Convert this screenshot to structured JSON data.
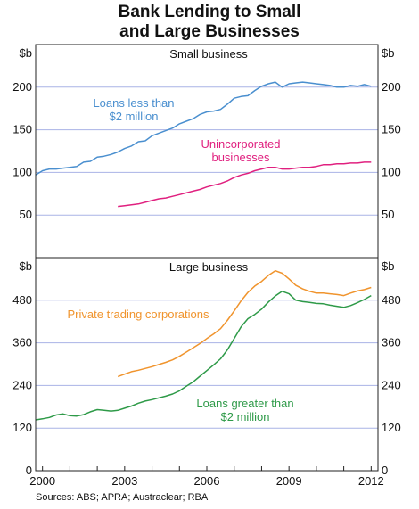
{
  "title_line1": "Bank Lending to Small",
  "title_line2": "and Large Businesses",
  "source": "Sources: ABS; APRA; Austraclear; RBA",
  "colors": {
    "blue": "#4a8fcf",
    "magenta": "#e0207f",
    "orange": "#f0942d",
    "green": "#2e9a48",
    "grid": "#a9b3e6",
    "axis": "#222222"
  },
  "chart_data": [
    {
      "type": "line",
      "title": "Small business",
      "unit": "$b",
      "ylim": [
        0,
        250
      ],
      "yticks": [
        50,
        100,
        150,
        200
      ],
      "xlim": [
        1999.75,
        2012.25
      ],
      "series": [
        {
          "name": "Loans less than $2 million",
          "label_lines": [
            "Loans less than",
            "$2 million"
          ],
          "color": "#4a8fcf",
          "points": [
            [
              1999.75,
              97
            ],
            [
              2000.0,
              102
            ],
            [
              2000.25,
              104
            ],
            [
              2000.5,
              104
            ],
            [
              2000.75,
              105
            ],
            [
              2001.0,
              106
            ],
            [
              2001.25,
              107
            ],
            [
              2001.5,
              112
            ],
            [
              2001.75,
              113
            ],
            [
              2002.0,
              118
            ],
            [
              2002.25,
              119
            ],
            [
              2002.5,
              121
            ],
            [
              2002.75,
              124
            ],
            [
              2003.0,
              128
            ],
            [
              2003.25,
              131
            ],
            [
              2003.5,
              136
            ],
            [
              2003.75,
              137
            ],
            [
              2004.0,
              143
            ],
            [
              2004.25,
              146
            ],
            [
              2004.5,
              149
            ],
            [
              2004.75,
              152
            ],
            [
              2005.0,
              157
            ],
            [
              2005.25,
              160
            ],
            [
              2005.5,
              163
            ],
            [
              2005.75,
              168
            ],
            [
              2006.0,
              171
            ],
            [
              2006.25,
              172
            ],
            [
              2006.5,
              174
            ],
            [
              2006.75,
              180
            ],
            [
              2007.0,
              187
            ],
            [
              2007.25,
              189
            ],
            [
              2007.5,
              190
            ],
            [
              2007.75,
              196
            ],
            [
              2008.0,
              201
            ],
            [
              2008.25,
              204
            ],
            [
              2008.5,
              206
            ],
            [
              2008.75,
              200
            ],
            [
              2009.0,
              204
            ],
            [
              2009.25,
              205
            ],
            [
              2009.5,
              206
            ],
            [
              2009.75,
              205
            ],
            [
              2010.0,
              204
            ],
            [
              2010.25,
              203
            ],
            [
              2010.5,
              202
            ],
            [
              2010.75,
              200
            ],
            [
              2011.0,
              200
            ],
            [
              2011.25,
              202
            ],
            [
              2011.5,
              201
            ],
            [
              2011.75,
              203
            ],
            [
              2012.0,
              201
            ]
          ]
        },
        {
          "name": "Unincorporated businesses",
          "label_lines": [
            "Unincorporated",
            "businesses"
          ],
          "color": "#e0207f",
          "points": [
            [
              2002.75,
              60
            ],
            [
              2003.0,
              61
            ],
            [
              2003.25,
              62
            ],
            [
              2003.5,
              63
            ],
            [
              2003.75,
              65
            ],
            [
              2004.0,
              67
            ],
            [
              2004.25,
              69
            ],
            [
              2004.5,
              70
            ],
            [
              2004.75,
              72
            ],
            [
              2005.0,
              74
            ],
            [
              2005.25,
              76
            ],
            [
              2005.5,
              78
            ],
            [
              2005.75,
              80
            ],
            [
              2006.0,
              83
            ],
            [
              2006.25,
              85
            ],
            [
              2006.5,
              87
            ],
            [
              2006.75,
              90
            ],
            [
              2007.0,
              94
            ],
            [
              2007.25,
              97
            ],
            [
              2007.5,
              99
            ],
            [
              2007.75,
              102
            ],
            [
              2008.0,
              104
            ],
            [
              2008.25,
              106
            ],
            [
              2008.5,
              106
            ],
            [
              2008.75,
              104
            ],
            [
              2009.0,
              104
            ],
            [
              2009.25,
              105
            ],
            [
              2009.5,
              106
            ],
            [
              2009.75,
              106
            ],
            [
              2010.0,
              107
            ],
            [
              2010.25,
              109
            ],
            [
              2010.5,
              109
            ],
            [
              2010.75,
              110
            ],
            [
              2011.0,
              110
            ],
            [
              2011.25,
              111
            ],
            [
              2011.5,
              111
            ],
            [
              2011.75,
              112
            ],
            [
              2012.0,
              112
            ]
          ]
        }
      ]
    },
    {
      "type": "line",
      "title": "Large business",
      "unit": "$b",
      "ylim": [
        0,
        600
      ],
      "yticks": [
        0,
        120,
        240,
        360,
        480
      ],
      "xlim": [
        1999.75,
        2012.25
      ],
      "xticks": [
        2000,
        2003,
        2006,
        2009,
        2012
      ],
      "series": [
        {
          "name": "Private trading corporations",
          "label_lines": [
            "Private trading corporations"
          ],
          "color": "#f0942d",
          "points": [
            [
              2002.75,
              265
            ],
            [
              2003.0,
              272
            ],
            [
              2003.25,
              279
            ],
            [
              2003.5,
              283
            ],
            [
              2003.75,
              288
            ],
            [
              2004.0,
              293
            ],
            [
              2004.25,
              299
            ],
            [
              2004.5,
              305
            ],
            [
              2004.75,
              312
            ],
            [
              2005.0,
              322
            ],
            [
              2005.25,
              334
            ],
            [
              2005.5,
              346
            ],
            [
              2005.75,
              358
            ],
            [
              2006.0,
              372
            ],
            [
              2006.25,
              385
            ],
            [
              2006.5,
              400
            ],
            [
              2006.75,
              423
            ],
            [
              2007.0,
              450
            ],
            [
              2007.25,
              478
            ],
            [
              2007.5,
              502
            ],
            [
              2007.75,
              520
            ],
            [
              2008.0,
              533
            ],
            [
              2008.25,
              550
            ],
            [
              2008.5,
              563
            ],
            [
              2008.75,
              556
            ],
            [
              2009.0,
              540
            ],
            [
              2009.25,
              522
            ],
            [
              2009.5,
              512
            ],
            [
              2009.75,
              505
            ],
            [
              2010.0,
              500
            ],
            [
              2010.25,
              500
            ],
            [
              2010.5,
              498
            ],
            [
              2010.75,
              496
            ],
            [
              2011.0,
              493
            ],
            [
              2011.25,
              500
            ],
            [
              2011.5,
              506
            ],
            [
              2011.75,
              510
            ],
            [
              2012.0,
              516
            ]
          ]
        },
        {
          "name": "Loans greater than $2 million",
          "label_lines": [
            "Loans greater than",
            "$2 million"
          ],
          "color": "#2e9a48",
          "points": [
            [
              1999.75,
              143
            ],
            [
              2000.0,
              146
            ],
            [
              2000.25,
              150
            ],
            [
              2000.5,
              157
            ],
            [
              2000.75,
              160
            ],
            [
              2001.0,
              155
            ],
            [
              2001.25,
              154
            ],
            [
              2001.5,
              158
            ],
            [
              2001.75,
              166
            ],
            [
              2002.0,
              172
            ],
            [
              2002.25,
              170
            ],
            [
              2002.5,
              168
            ],
            [
              2002.75,
              170
            ],
            [
              2003.0,
              176
            ],
            [
              2003.25,
              182
            ],
            [
              2003.5,
              190
            ],
            [
              2003.75,
              196
            ],
            [
              2004.0,
              200
            ],
            [
              2004.25,
              205
            ],
            [
              2004.5,
              210
            ],
            [
              2004.75,
              216
            ],
            [
              2005.0,
              225
            ],
            [
              2005.25,
              238
            ],
            [
              2005.5,
              250
            ],
            [
              2005.75,
              266
            ],
            [
              2006.0,
              282
            ],
            [
              2006.25,
              298
            ],
            [
              2006.5,
              315
            ],
            [
              2006.75,
              340
            ],
            [
              2007.0,
              372
            ],
            [
              2007.25,
              405
            ],
            [
              2007.5,
              428
            ],
            [
              2007.75,
              440
            ],
            [
              2008.0,
              455
            ],
            [
              2008.25,
              475
            ],
            [
              2008.5,
              492
            ],
            [
              2008.75,
              505
            ],
            [
              2009.0,
              498
            ],
            [
              2009.25,
              480
            ],
            [
              2009.5,
              476
            ],
            [
              2009.75,
              474
            ],
            [
              2010.0,
              471
            ],
            [
              2010.25,
              470
            ],
            [
              2010.5,
              466
            ],
            [
              2010.75,
              463
            ],
            [
              2011.0,
              460
            ],
            [
              2011.25,
              465
            ],
            [
              2011.5,
              473
            ],
            [
              2011.75,
              482
            ],
            [
              2012.0,
              493
            ]
          ]
        }
      ]
    }
  ]
}
